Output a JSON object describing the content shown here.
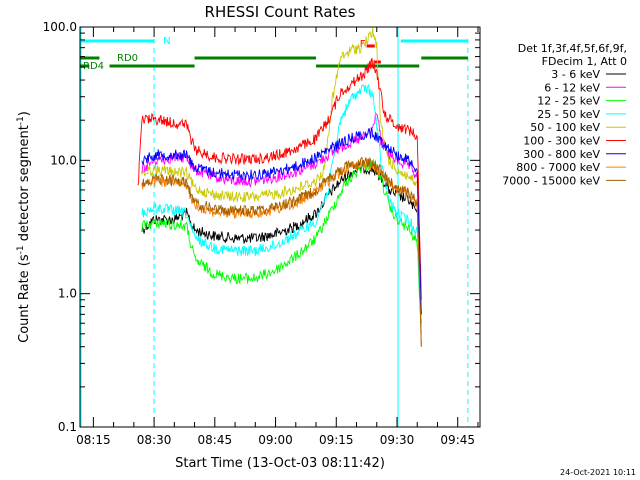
{
  "chart_data": {
    "type": "line",
    "title": "RHESSI Count Rates",
    "xlabel": "Start Time (13-Oct-03 08:11:42)",
    "ylabel_main": "Count Rate (s",
    "ylabel_sup1": "-1",
    "ylabel_mid": " detector segment",
    "ylabel_sup2": "-1",
    "ylabel_end": ")",
    "y_scale": "log",
    "ylim": [
      0.1,
      100.0
    ],
    "xlim": [
      "08:11:42",
      "09:50:30"
    ],
    "x_ticks": [
      "08:15",
      "08:30",
      "08:45",
      "09:00",
      "09:15",
      "09:30",
      "09:45"
    ],
    "y_ticks": [
      "0.1",
      "1.0",
      "10.0",
      "100.0"
    ],
    "legend_position": "right",
    "legend_header": [
      "Det 1f,3f,4f,5f,6f,9f,",
      "FDecim 1, Att 0"
    ],
    "series": [
      {
        "name": "3 - 6 keV",
        "color": "#000000",
        "points": [
          [
            "08:27:00",
            3.0
          ],
          [
            "08:30:00",
            3.6
          ],
          [
            "08:35:00",
            3.6
          ],
          [
            "08:38:00",
            4.0
          ],
          [
            "08:40:00",
            3.0
          ],
          [
            "08:45:00",
            2.7
          ],
          [
            "08:50:00",
            2.6
          ],
          [
            "08:55:00",
            2.6
          ],
          [
            "09:00:00",
            2.8
          ],
          [
            "09:05:00",
            3.2
          ],
          [
            "09:10:00",
            4.0
          ],
          [
            "09:13:00",
            5.5
          ],
          [
            "09:17:00",
            7.5
          ],
          [
            "09:21:00",
            8.8
          ],
          [
            "09:24:00",
            8.6
          ],
          [
            "09:26:00",
            7.5
          ],
          [
            "09:28:00",
            6.0
          ],
          [
            "09:30:00",
            5.5
          ],
          [
            "09:33:00",
            5.0
          ],
          [
            "09:35:00",
            4.0
          ],
          [
            "09:36:00",
            0.6
          ]
        ]
      },
      {
        "name": "6 - 12 keV",
        "color": "#ff00ff",
        "points": [
          [
            "08:27:00",
            8.5
          ],
          [
            "08:30:00",
            10.0
          ],
          [
            "08:35:00",
            10.5
          ],
          [
            "08:38:00",
            10.5
          ],
          [
            "08:40:00",
            8.5
          ],
          [
            "08:45:00",
            7.5
          ],
          [
            "08:50:00",
            7.0
          ],
          [
            "08:55:00",
            7.0
          ],
          [
            "09:00:00",
            7.5
          ],
          [
            "09:05:00",
            8.2
          ],
          [
            "09:10:00",
            9.5
          ],
          [
            "09:13:00",
            11.0
          ],
          [
            "09:17:00",
            13.0
          ],
          [
            "09:21:00",
            14.5
          ],
          [
            "09:24:00",
            17.0
          ],
          [
            "09:25:00",
            24.0
          ],
          [
            "09:26:00",
            14.0
          ],
          [
            "09:28:00",
            11.0
          ],
          [
            "09:30:00",
            10.0
          ],
          [
            "09:33:00",
            9.0
          ],
          [
            "09:35:00",
            7.5
          ],
          [
            "09:36:00",
            0.7
          ]
        ]
      },
      {
        "name": "12 - 25 keV",
        "color": "#00ff00",
        "points": [
          [
            "08:27:00",
            3.2
          ],
          [
            "08:30:00",
            3.4
          ],
          [
            "08:35:00",
            3.3
          ],
          [
            "08:38:00",
            3.2
          ],
          [
            "08:40:00",
            1.8
          ],
          [
            "08:45:00",
            1.4
          ],
          [
            "08:50:00",
            1.3
          ],
          [
            "08:55:00",
            1.3
          ],
          [
            "09:00:00",
            1.5
          ],
          [
            "09:05:00",
            1.9
          ],
          [
            "09:10:00",
            2.6
          ],
          [
            "09:13:00",
            3.8
          ],
          [
            "09:17:00",
            6.5
          ],
          [
            "09:21:00",
            8.8
          ],
          [
            "09:24:00",
            9.5
          ],
          [
            "09:26:00",
            7.5
          ],
          [
            "09:28:00",
            4.5
          ],
          [
            "09:30:00",
            3.6
          ],
          [
            "09:33:00",
            3.0
          ],
          [
            "09:35:00",
            2.4
          ],
          [
            "09:36:00",
            0.5
          ]
        ]
      },
      {
        "name": "25 - 50 keV",
        "color": "#00ffff",
        "points": [
          [
            "08:27:00",
            4.0
          ],
          [
            "08:30:00",
            4.4
          ],
          [
            "08:35:00",
            4.2
          ],
          [
            "08:38:00",
            4.0
          ],
          [
            "08:40:00",
            2.6
          ],
          [
            "08:45:00",
            2.2
          ],
          [
            "08:50:00",
            2.1
          ],
          [
            "08:55:00",
            2.1
          ],
          [
            "09:00:00",
            2.3
          ],
          [
            "09:05:00",
            2.8
          ],
          [
            "09:10:00",
            3.5
          ],
          [
            "09:13:00",
            6.0
          ],
          [
            "09:16:00",
            20.0
          ],
          [
            "09:19:00",
            30.0
          ],
          [
            "09:22:00",
            35.0
          ],
          [
            "09:24:00",
            32.0
          ],
          [
            "09:26:00",
            10.0
          ],
          [
            "09:28:00",
            5.0
          ],
          [
            "09:30:00",
            4.0
          ],
          [
            "09:33:00",
            3.5
          ],
          [
            "09:35:00",
            2.9
          ],
          [
            "09:36:00",
            0.5
          ]
        ]
      },
      {
        "name": "50 - 100 keV",
        "color": "#c8c800",
        "points": [
          [
            "08:27:00",
            8.0
          ],
          [
            "08:30:00",
            8.5
          ],
          [
            "08:35:00",
            8.2
          ],
          [
            "08:38:00",
            8.0
          ],
          [
            "08:40:00",
            6.2
          ],
          [
            "08:45:00",
            5.5
          ],
          [
            "08:50:00",
            5.3
          ],
          [
            "08:55:00",
            5.3
          ],
          [
            "09:00:00",
            5.6
          ],
          [
            "09:05:00",
            6.1
          ],
          [
            "09:10:00",
            7.0
          ],
          [
            "09:12:00",
            8.5
          ],
          [
            "09:14:00",
            28.0
          ],
          [
            "09:16:00",
            58.0
          ],
          [
            "09:19:00",
            68.0
          ],
          [
            "09:21:00",
            70.0
          ],
          [
            "09:23:00",
            82.0
          ],
          [
            "09:24:00",
            92.0
          ],
          [
            "09:25:00",
            72.0
          ],
          [
            "09:26:00",
            18.0
          ],
          [
            "09:28:00",
            10.0
          ],
          [
            "09:30:00",
            8.5
          ],
          [
            "09:33:00",
            7.5
          ],
          [
            "09:35:00",
            6.5
          ],
          [
            "09:36:00",
            0.6
          ]
        ]
      },
      {
        "name": "100 - 300 keV",
        "color": "#ff0000",
        "points": [
          [
            "08:26:00",
            6.0
          ],
          [
            "08:27:00",
            20.0
          ],
          [
            "08:30:00",
            20.5
          ],
          [
            "08:35:00",
            19.0
          ],
          [
            "08:38:00",
            18.5
          ],
          [
            "08:40:00",
            12.0
          ],
          [
            "08:45:00",
            10.5
          ],
          [
            "08:50:00",
            10.2
          ],
          [
            "08:55:00",
            10.2
          ],
          [
            "09:00:00",
            10.8
          ],
          [
            "09:05:00",
            12.2
          ],
          [
            "09:10:00",
            14.5
          ],
          [
            "09:13:00",
            20.0
          ],
          [
            "09:16:00",
            32.0
          ],
          [
            "09:19:00",
            38.0
          ],
          [
            "09:22:00",
            45.0
          ],
          [
            "09:24:00",
            55.0
          ],
          [
            "09:25:00",
            45.0
          ],
          [
            "09:27:00",
            22.0
          ],
          [
            "09:30:00",
            18.0
          ],
          [
            "09:33:00",
            17.0
          ],
          [
            "09:35:00",
            15.0
          ],
          [
            "09:36:00",
            0.9
          ]
        ]
      },
      {
        "name": "300 - 800 keV",
        "color": "#0000ff",
        "points": [
          [
            "08:27:00",
            10.0
          ],
          [
            "08:30:00",
            11.0
          ],
          [
            "08:35:00",
            11.0
          ],
          [
            "08:38:00",
            11.0
          ],
          [
            "08:40:00",
            8.8
          ],
          [
            "08:45:00",
            8.1
          ],
          [
            "08:50:00",
            7.8
          ],
          [
            "08:55:00",
            7.8
          ],
          [
            "09:00:00",
            8.2
          ],
          [
            "09:05:00",
            9.0
          ],
          [
            "09:10:00",
            10.5
          ],
          [
            "09:13:00",
            12.0
          ],
          [
            "09:17:00",
            14.0
          ],
          [
            "09:21:00",
            15.5
          ],
          [
            "09:24:00",
            16.0
          ],
          [
            "09:26:00",
            14.0
          ],
          [
            "09:28:00",
            12.5
          ],
          [
            "09:30:00",
            11.0
          ],
          [
            "09:33:00",
            10.0
          ],
          [
            "09:35:00",
            8.5
          ],
          [
            "09:36:00",
            0.7
          ]
        ]
      },
      {
        "name": "800 - 7000 keV",
        "color": "#ff8000",
        "points": [
          [
            "08:27:00",
            6.5
          ],
          [
            "08:30:00",
            7.0
          ],
          [
            "08:35:00",
            6.8
          ],
          [
            "08:38:00",
            6.5
          ],
          [
            "08:40:00",
            4.6
          ],
          [
            "08:45:00",
            4.1
          ],
          [
            "08:50:00",
            4.0
          ],
          [
            "08:55:00",
            4.0
          ],
          [
            "09:00:00",
            4.3
          ],
          [
            "09:05:00",
            4.8
          ],
          [
            "09:10:00",
            5.8
          ],
          [
            "09:13:00",
            7.0
          ],
          [
            "09:17:00",
            8.5
          ],
          [
            "09:21:00",
            9.5
          ],
          [
            "09:24:00",
            9.3
          ],
          [
            "09:26:00",
            8.0
          ],
          [
            "09:28:00",
            6.8
          ],
          [
            "09:30:00",
            6.0
          ],
          [
            "09:33:00",
            5.5
          ],
          [
            "09:35:00",
            4.6
          ],
          [
            "09:36:00",
            0.4
          ]
        ]
      },
      {
        "name": "7000 - 15000 keV",
        "color": "#a06000",
        "points": [
          [
            "08:27:00",
            6.8
          ],
          [
            "08:30:00",
            7.3
          ],
          [
            "08:35:00",
            7.1
          ],
          [
            "08:38:00",
            6.8
          ],
          [
            "08:40:00",
            4.8
          ],
          [
            "08:45:00",
            4.3
          ],
          [
            "08:50:00",
            4.2
          ],
          [
            "08:55:00",
            4.2
          ],
          [
            "09:00:00",
            4.5
          ],
          [
            "09:05:00",
            5.0
          ],
          [
            "09:10:00",
            6.0
          ],
          [
            "09:13:00",
            7.3
          ],
          [
            "09:17:00",
            8.8
          ],
          [
            "09:21:00",
            9.8
          ],
          [
            "09:24:00",
            9.6
          ],
          [
            "09:26:00",
            8.3
          ],
          [
            "09:28:00",
            7.0
          ],
          [
            "09:30:00",
            6.2
          ],
          [
            "09:33:00",
            5.7
          ],
          [
            "09:35:00",
            4.8
          ],
          [
            "09:36:00",
            0.4
          ]
        ]
      }
    ],
    "annotations": {
      "night_bars": {
        "color": "#00ffff",
        "label": "N",
        "label_at": "08:31:00",
        "segments": [
          [
            "08:11:42",
            "08:30:00"
          ],
          [
            "09:31:00",
            "09:47:30"
          ]
        ]
      },
      "saa_markers": {
        "color": "#00ffff",
        "dashed_at": [
          "08:30:00",
          "09:47:30"
        ],
        "solid_at": [
          "08:11:42",
          "09:30:00"
        ]
      },
      "rd_bars": {
        "color": "#008000",
        "rd0": {
          "label": "RD0",
          "segments": [
            [
              "08:11:42",
              "08:16:30"
            ],
            [
              "08:40:00",
              "09:10:00"
            ],
            [
              "09:36:00",
              "09:47:30"
            ]
          ]
        },
        "rd4": {
          "label": "RD4",
          "segments": [
            [
              "08:11:42",
              "08:14:00"
            ],
            [
              "08:19:00",
              "08:40:00"
            ],
            [
              "09:10:00",
              "09:35:30"
            ]
          ]
        }
      },
      "flag_f": {
        "label": "F",
        "color": "#ff0000",
        "at": "09:21:30"
      },
      "flag_bars": {
        "color": "#ff0000",
        "segments": [
          [
            "09:22:30",
            "09:24:30"
          ],
          [
            "09:24:30",
            "09:26:00"
          ]
        ]
      }
    }
  },
  "footer": {
    "date_stamp": "24-Oct-2021 10:11"
  }
}
